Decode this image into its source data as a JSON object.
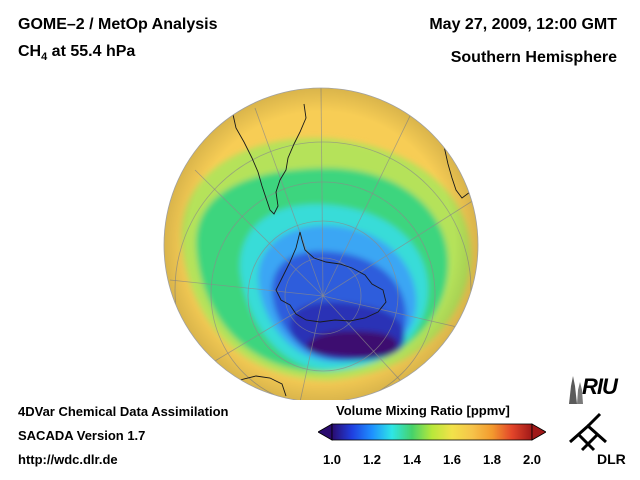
{
  "header": {
    "title": "GOME–2 / MetOp Analysis",
    "species_prefix": "CH",
    "species_subscript": "4",
    "species_suffix": " at 55.4 hPa",
    "datetime": "May 27, 2009, 12:00 GMT",
    "hemisphere": "Southern Hemisphere"
  },
  "credits": {
    "line1": "4DVar Chemical Data Assimilation",
    "line2": "SACADA Version 1.7",
    "line3": "http://wdc.dlr.de"
  },
  "colorbar": {
    "title": "Volume Mixing Ratio [ppmv]",
    "min": 1.0,
    "max": 2.0,
    "ticks": [
      "1.0",
      "1.2",
      "1.4",
      "1.6",
      "1.8",
      "2.0"
    ],
    "colors": [
      "#2a0b6e",
      "#1f3fe0",
      "#1e90ff",
      "#2ee6e6",
      "#46d26a",
      "#b8e83a",
      "#f2e24a",
      "#f6c44a",
      "#f39a2e",
      "#e3452a",
      "#a01818"
    ]
  },
  "map": {
    "projection": "orthographic",
    "hemisphere": "south",
    "background_color": "#f7cd55",
    "min_value_region_ppmv": 1.0,
    "background_value_ppmv": 1.65,
    "colors": {
      "yellow": "#f7cd55",
      "light_green": "#b5e25a",
      "green": "#3dd57e",
      "cyan": "#37dcd8",
      "light_blue": "#3aa6f4",
      "blue": "#2f5ddc",
      "dark_blue": "#2b32b6",
      "purple": "#3d0f70"
    }
  },
  "logos": {
    "riu": "RIU",
    "dlr": "DLR"
  }
}
